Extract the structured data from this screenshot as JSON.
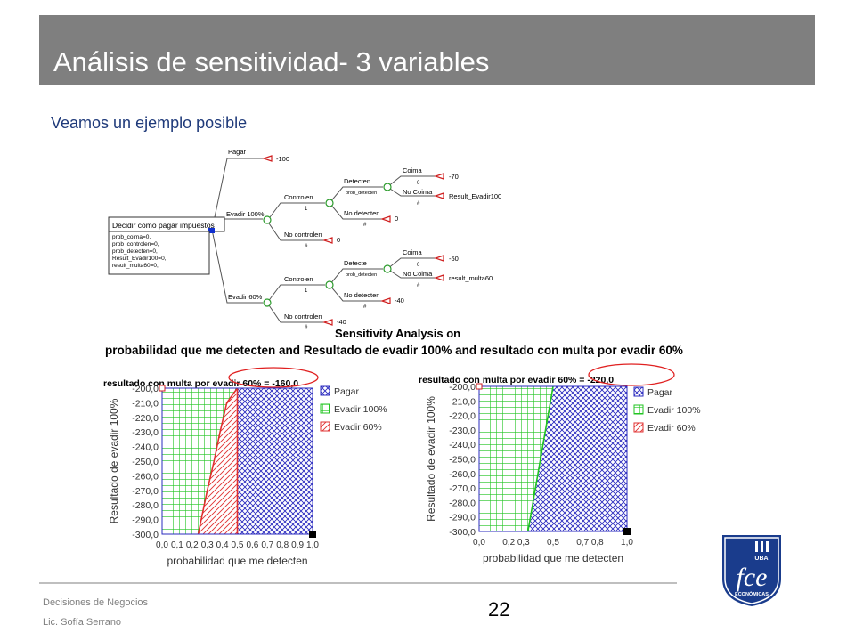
{
  "slide": {
    "title": "Análisis de sensitividad- 3 variables",
    "subtitle": "Veamos un ejemplo posible",
    "page_number": "22",
    "footer_course": "Decisiones de Negocios",
    "footer_author": "Lic. Sofía Serrano"
  },
  "tree": {
    "decision_label": "Decidir como pagar impuestos",
    "definitions": [
      "prob_coima=0,",
      "prob_controlen=0,",
      "prob_detecten=0,",
      "Result_Evadir100=0,",
      "result_multa60=0,"
    ],
    "branch_pagar": "Pagar",
    "value_pagar": "-100",
    "branch_evadir100": "Evadir 100%",
    "branch_evadir60": "Evadir 60%",
    "controlen": "Controlen",
    "no_controlen": "No controlen",
    "detecten": "Detecten",
    "detecte": "Detecte",
    "no_detecten": "No detecten",
    "prob_detecten": "prob_detecten",
    "coima": "Coima",
    "no_coima": "No Coima",
    "top": {
      "coima_value": "-70",
      "no_coima_value": "Result_Evadir100",
      "no_detecten_value": "0",
      "no_controlen_value": "0"
    },
    "bottom": {
      "coima_value": "-50",
      "no_coima_value": "result_multa60",
      "no_detecten_value": "-40",
      "no_controlen_value": "-40"
    },
    "one": "1",
    "zero": "0",
    "hash": "#"
  },
  "sensitivity": {
    "heading_partial": "Sensitivity Analysis on",
    "heading": "probabilidad que me detecten and Resultado de evadir 100% and resultado con multa por evadir 60%"
  },
  "chart_data": [
    {
      "type": "area",
      "title": "resultado con multa por evadir 60% = -160,0",
      "xlabel": "probabilidad que me detecten",
      "ylabel": "Resultado de evadir 100%",
      "xlim": [
        0,
        1
      ],
      "ylim": [
        -300,
        -200
      ],
      "x_ticks": [
        "0,0",
        "0,1",
        "0,2",
        "0,3",
        "0,4",
        "0,5",
        "0,6",
        "0,7",
        "0,8",
        "0,9",
        "1,0"
      ],
      "y_ticks": [
        "-200,0",
        "-210,0",
        "-220,0",
        "-230,0",
        "-240,0",
        "-250,0",
        "-260,0",
        "-270,0",
        "-280,0",
        "-290,0",
        "-300,0"
      ],
      "legend": [
        "Pagar",
        "Evadir 100%",
        "Evadir 60%"
      ],
      "boundaries": {
        "evadir100_evadir60": [
          [
            0.5,
            -200
          ],
          [
            0.43,
            -210
          ],
          [
            0.385,
            -230
          ],
          [
            0.345,
            -250
          ],
          [
            0.3,
            -270
          ],
          [
            0.24,
            -300
          ]
        ],
        "evadir60_pagar": [
          [
            0.5,
            -200
          ],
          [
            0.5,
            -300
          ]
        ]
      },
      "colors": {
        "pagar": "#2b2bbf",
        "evadir100": "#22c422",
        "evadir60": "#e03030"
      }
    },
    {
      "type": "area",
      "title": "resultado con multa por evadir 60% = -220,0",
      "xlabel": "probabilidad que me detecten",
      "ylabel": "Resultado de evadir 100%",
      "xlim": [
        0,
        1
      ],
      "ylim": [
        -300,
        -200
      ],
      "x_ticks": [
        "0,0",
        "0,2",
        "0,3",
        "0,5",
        "0,7",
        "0,8",
        "1,0"
      ],
      "y_ticks": [
        "-200,0",
        "-210,0",
        "-220,0",
        "-230,0",
        "-240,0",
        "-250,0",
        "-260,0",
        "-270,0",
        "-280,0",
        "-290,0",
        "-300,0"
      ],
      "legend": [
        "Pagar",
        "Evadir 100%",
        "Evadir 60%"
      ],
      "boundaries": {
        "evadir100_pagar": [
          [
            0.5,
            -200
          ],
          [
            0.33,
            -300
          ]
        ]
      },
      "colors": {
        "pagar": "#2b2bbf",
        "evadir100": "#22c422",
        "evadir60": "#e03030"
      }
    }
  ],
  "logo": {
    "text_uba": "UBA",
    "text_fce": "fce",
    "text_economicas": "ECONÓMICAS",
    "color": "#1a3c8c"
  }
}
